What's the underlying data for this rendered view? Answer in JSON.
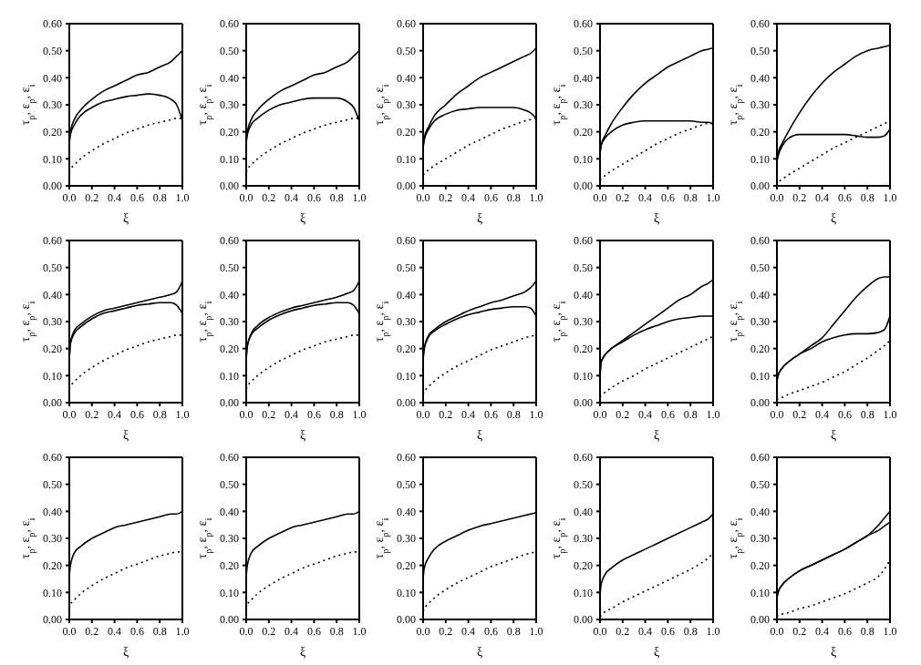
{
  "chart_data": [
    {
      "type": "line",
      "xlabel": "ξ",
      "ylabel": "τ$_{p}$, ε$_{p}$, ε$_{i}$",
      "x": [
        0,
        0.01,
        0.05,
        0.1,
        0.2,
        0.3,
        0.4,
        0.5,
        0.6,
        0.7,
        0.8,
        0.9,
        0.95,
        1.0
      ],
      "xlim": [
        0,
        1
      ],
      "xticks": [
        {
          "value": 0,
          "label": "0.0"
        },
        {
          "value": 0.2,
          "label": "0.2"
        },
        {
          "value": 0.4,
          "label": "0.4"
        },
        {
          "value": 0.6,
          "label": "0.6"
        },
        {
          "value": 0.8,
          "label": "0.8"
        },
        {
          "value": 1,
          "label": "1.0"
        }
      ],
      "ylim": [
        0,
        0.6
      ],
      "yticks": [
        {
          "value": 0,
          "label": "0.00"
        },
        {
          "value": 0.1,
          "label": "0.10"
        },
        {
          "value": 0.2,
          "label": "0.20"
        },
        {
          "value": 0.3,
          "label": "0.30"
        },
        {
          "value": 0.4,
          "label": "0.40"
        },
        {
          "value": 0.5,
          "label": "0.50"
        },
        {
          "value": 0.6,
          "label": "0.60"
        }
      ],
      "series": [
        {
          "color": "#000000",
          "line_style": "solid",
          "values": [
            0.16,
            0.2,
            0.25,
            0.28,
            0.32,
            0.35,
            0.37,
            0.39,
            0.41,
            0.42,
            0.44,
            0.46,
            0.48,
            0.5
          ]
        },
        {
          "color": "#000000",
          "line_style": "solid",
          "values": [
            0.16,
            0.19,
            0.23,
            0.26,
            0.29,
            0.31,
            0.32,
            0.33,
            0.335,
            0.34,
            0.335,
            0.32,
            0.3,
            0.24
          ]
        },
        {
          "color": "#000000",
          "line_style": "dotted",
          "values": [
            0.05,
            0.06,
            0.08,
            0.1,
            0.13,
            0.155,
            0.175,
            0.195,
            0.21,
            0.225,
            0.235,
            0.245,
            0.25,
            0.25
          ]
        }
      ]
    },
    {
      "type": "line",
      "xlabel": "ξ",
      "ylabel": "τ$_{p}$, ε$_{p}$, ε$_{i}$",
      "x": [
        0,
        0.01,
        0.05,
        0.1,
        0.2,
        0.3,
        0.4,
        0.5,
        0.6,
        0.7,
        0.8,
        0.9,
        0.95,
        1.0
      ],
      "xlim": [
        0,
        1
      ],
      "xticks": [
        {
          "value": 0,
          "label": "0.0"
        },
        {
          "value": 0.2,
          "label": "0.2"
        },
        {
          "value": 0.4,
          "label": "0.4"
        },
        {
          "value": 0.6,
          "label": "0.6"
        },
        {
          "value": 0.8,
          "label": "0.8"
        },
        {
          "value": 1,
          "label": "1.0"
        }
      ],
      "ylim": [
        0,
        0.6
      ],
      "yticks": [
        {
          "value": 0,
          "label": "0.00"
        },
        {
          "value": 0.1,
          "label": "0.10"
        },
        {
          "value": 0.2,
          "label": "0.20"
        },
        {
          "value": 0.3,
          "label": "0.30"
        },
        {
          "value": 0.4,
          "label": "0.40"
        },
        {
          "value": 0.5,
          "label": "0.50"
        },
        {
          "value": 0.6,
          "label": "0.60"
        }
      ],
      "series": [
        {
          "color": "#000000",
          "line_style": "solid",
          "values": [
            0.16,
            0.2,
            0.25,
            0.28,
            0.32,
            0.35,
            0.37,
            0.39,
            0.41,
            0.42,
            0.44,
            0.46,
            0.48,
            0.5
          ]
        },
        {
          "color": "#000000",
          "line_style": "solid",
          "values": [
            0.16,
            0.19,
            0.23,
            0.25,
            0.28,
            0.3,
            0.31,
            0.32,
            0.325,
            0.325,
            0.325,
            0.31,
            0.29,
            0.24
          ]
        },
        {
          "color": "#000000",
          "line_style": "dotted",
          "values": [
            0.05,
            0.06,
            0.08,
            0.1,
            0.13,
            0.155,
            0.175,
            0.195,
            0.21,
            0.225,
            0.235,
            0.245,
            0.25,
            0.25
          ]
        }
      ]
    },
    {
      "type": "line",
      "xlabel": "ξ",
      "ylabel": "τ$_{p}$, ε$_{p}$, ε$_{i}$",
      "x": [
        0,
        0.01,
        0.05,
        0.1,
        0.2,
        0.3,
        0.4,
        0.5,
        0.6,
        0.7,
        0.8,
        0.9,
        0.95,
        1.0
      ],
      "xlim": [
        0,
        1
      ],
      "xticks": [
        {
          "value": 0,
          "label": "0.0"
        },
        {
          "value": 0.2,
          "label": "0.2"
        },
        {
          "value": 0.4,
          "label": "0.4"
        },
        {
          "value": 0.6,
          "label": "0.6"
        },
        {
          "value": 0.8,
          "label": "0.8"
        },
        {
          "value": 1,
          "label": "1.0"
        }
      ],
      "ylim": [
        0,
        0.6
      ],
      "yticks": [
        {
          "value": 0,
          "label": "0.00"
        },
        {
          "value": 0.1,
          "label": "0.10"
        },
        {
          "value": 0.2,
          "label": "0.20"
        },
        {
          "value": 0.3,
          "label": "0.30"
        },
        {
          "value": 0.4,
          "label": "0.40"
        },
        {
          "value": 0.5,
          "label": "0.50"
        },
        {
          "value": 0.6,
          "label": "0.60"
        }
      ],
      "series": [
        {
          "color": "#000000",
          "line_style": "solid",
          "values": [
            0.14,
            0.18,
            0.22,
            0.26,
            0.3,
            0.34,
            0.37,
            0.4,
            0.42,
            0.44,
            0.46,
            0.48,
            0.49,
            0.51
          ]
        },
        {
          "color": "#000000",
          "line_style": "solid",
          "values": [
            0.14,
            0.17,
            0.21,
            0.24,
            0.265,
            0.28,
            0.285,
            0.29,
            0.29,
            0.29,
            0.29,
            0.28,
            0.27,
            0.25
          ]
        },
        {
          "color": "#000000",
          "line_style": "dotted",
          "values": [
            0.04,
            0.045,
            0.06,
            0.075,
            0.1,
            0.125,
            0.15,
            0.17,
            0.19,
            0.21,
            0.225,
            0.24,
            0.245,
            0.25
          ]
        }
      ]
    },
    {
      "type": "line",
      "xlabel": "ξ",
      "ylabel": "τ$_{p}$, ε$_{p}$, ε$_{i}$",
      "x": [
        0,
        0.01,
        0.05,
        0.1,
        0.2,
        0.3,
        0.4,
        0.5,
        0.6,
        0.7,
        0.8,
        0.9,
        0.95,
        1.0
      ],
      "xlim": [
        0,
        1
      ],
      "xticks": [
        {
          "value": 0,
          "label": "0.0"
        },
        {
          "value": 0.2,
          "label": "0.2"
        },
        {
          "value": 0.4,
          "label": "0.4"
        },
        {
          "value": 0.6,
          "label": "0.6"
        },
        {
          "value": 0.8,
          "label": "0.8"
        },
        {
          "value": 1,
          "label": "1.0"
        }
      ],
      "ylim": [
        0,
        0.6
      ],
      "yticks": [
        {
          "value": 0,
          "label": "0.00"
        },
        {
          "value": 0.1,
          "label": "0.10"
        },
        {
          "value": 0.2,
          "label": "0.20"
        },
        {
          "value": 0.3,
          "label": "0.30"
        },
        {
          "value": 0.4,
          "label": "0.40"
        },
        {
          "value": 0.5,
          "label": "0.50"
        },
        {
          "value": 0.6,
          "label": "0.60"
        }
      ],
      "series": [
        {
          "color": "#000000",
          "line_style": "solid",
          "values": [
            0.12,
            0.15,
            0.19,
            0.23,
            0.29,
            0.34,
            0.38,
            0.41,
            0.44,
            0.46,
            0.48,
            0.5,
            0.505,
            0.51
          ]
        },
        {
          "color": "#000000",
          "line_style": "solid",
          "values": [
            0.12,
            0.15,
            0.18,
            0.2,
            0.225,
            0.235,
            0.24,
            0.24,
            0.24,
            0.24,
            0.24,
            0.235,
            0.235,
            0.23
          ]
        },
        {
          "color": "#000000",
          "line_style": "dotted",
          "values": [
            0.02,
            0.025,
            0.04,
            0.055,
            0.08,
            0.105,
            0.13,
            0.155,
            0.175,
            0.195,
            0.21,
            0.225,
            0.23,
            0.23
          ]
        }
      ]
    },
    {
      "type": "line",
      "xlabel": "ξ",
      "ylabel": "τ$_{p}$, ε$_{p}$, ε$_{i}$",
      "x": [
        0,
        0.01,
        0.05,
        0.1,
        0.2,
        0.3,
        0.4,
        0.5,
        0.6,
        0.7,
        0.8,
        0.9,
        0.95,
        1.0
      ],
      "xlim": [
        0,
        1
      ],
      "xticks": [
        {
          "value": 0,
          "label": "0.0"
        },
        {
          "value": 0.2,
          "label": "0.2"
        },
        {
          "value": 0.4,
          "label": "0.4"
        },
        {
          "value": 0.6,
          "label": "0.6"
        },
        {
          "value": 0.8,
          "label": "0.8"
        },
        {
          "value": 1,
          "label": "1.0"
        }
      ],
      "ylim": [
        0,
        0.6
      ],
      "yticks": [
        {
          "value": 0,
          "label": "0.00"
        },
        {
          "value": 0.1,
          "label": "0.10"
        },
        {
          "value": 0.2,
          "label": "0.20"
        },
        {
          "value": 0.3,
          "label": "0.30"
        },
        {
          "value": 0.4,
          "label": "0.40"
        },
        {
          "value": 0.5,
          "label": "0.50"
        },
        {
          "value": 0.6,
          "label": "0.60"
        }
      ],
      "series": [
        {
          "color": "#000000",
          "line_style": "solid",
          "values": [
            0.09,
            0.12,
            0.16,
            0.2,
            0.27,
            0.33,
            0.38,
            0.42,
            0.45,
            0.48,
            0.5,
            0.51,
            0.515,
            0.52
          ]
        },
        {
          "color": "#000000",
          "line_style": "solid",
          "values": [
            0.09,
            0.11,
            0.15,
            0.175,
            0.19,
            0.19,
            0.19,
            0.19,
            0.19,
            0.185,
            0.18,
            0.18,
            0.185,
            0.21
          ]
        },
        {
          "color": "#000000",
          "line_style": "dotted",
          "values": [
            0.0,
            0.01,
            0.025,
            0.04,
            0.065,
            0.09,
            0.115,
            0.14,
            0.16,
            0.18,
            0.2,
            0.22,
            0.23,
            0.24
          ]
        }
      ]
    },
    {
      "type": "line",
      "xlabel": "ξ",
      "ylabel": "τ$_{p}$, ε$_{p}$, ε$_{i}$",
      "x": [
        0,
        0.01,
        0.05,
        0.1,
        0.2,
        0.3,
        0.4,
        0.5,
        0.6,
        0.7,
        0.8,
        0.9,
        0.95,
        1.0
      ],
      "xlim": [
        0,
        1
      ],
      "xticks": [
        {
          "value": 0,
          "label": "0.0"
        },
        {
          "value": 0.2,
          "label": "0.2"
        },
        {
          "value": 0.4,
          "label": "0.4"
        },
        {
          "value": 0.6,
          "label": "0.6"
        },
        {
          "value": 0.8,
          "label": "0.8"
        },
        {
          "value": 1,
          "label": "1.0"
        }
      ],
      "ylim": [
        0,
        0.6
      ],
      "yticks": [
        {
          "value": 0,
          "label": "0.00"
        },
        {
          "value": 0.1,
          "label": "0.10"
        },
        {
          "value": 0.2,
          "label": "0.20"
        },
        {
          "value": 0.3,
          "label": "0.30"
        },
        {
          "value": 0.4,
          "label": "0.40"
        },
        {
          "value": 0.5,
          "label": "0.50"
        },
        {
          "value": 0.6,
          "label": "0.60"
        }
      ],
      "series": [
        {
          "color": "#000000",
          "line_style": "solid",
          "values": [
            0.16,
            0.22,
            0.27,
            0.29,
            0.32,
            0.34,
            0.35,
            0.36,
            0.37,
            0.38,
            0.39,
            0.4,
            0.41,
            0.45
          ]
        },
        {
          "color": "#000000",
          "line_style": "solid",
          "values": [
            0.16,
            0.22,
            0.26,
            0.28,
            0.31,
            0.33,
            0.34,
            0.35,
            0.36,
            0.365,
            0.37,
            0.37,
            0.36,
            0.33
          ]
        },
        {
          "color": "#000000",
          "line_style": "dotted",
          "values": [
            0.05,
            0.06,
            0.08,
            0.1,
            0.13,
            0.155,
            0.175,
            0.195,
            0.21,
            0.225,
            0.235,
            0.245,
            0.25,
            0.25
          ]
        }
      ]
    },
    {
      "type": "line",
      "xlabel": "ξ",
      "ylabel": "τ$_{p}$, ε$_{p}$, ε$_{i}$",
      "x": [
        0,
        0.01,
        0.05,
        0.1,
        0.2,
        0.3,
        0.4,
        0.5,
        0.6,
        0.7,
        0.8,
        0.9,
        0.95,
        1.0
      ],
      "xlim": [
        0,
        1
      ],
      "xticks": [
        {
          "value": 0,
          "label": "0.0"
        },
        {
          "value": 0.2,
          "label": "0.2"
        },
        {
          "value": 0.4,
          "label": "0.4"
        },
        {
          "value": 0.6,
          "label": "0.6"
        },
        {
          "value": 0.8,
          "label": "0.8"
        },
        {
          "value": 1,
          "label": "1.0"
        }
      ],
      "ylim": [
        0,
        0.6
      ],
      "yticks": [
        {
          "value": 0,
          "label": "0.00"
        },
        {
          "value": 0.1,
          "label": "0.10"
        },
        {
          "value": 0.2,
          "label": "0.20"
        },
        {
          "value": 0.3,
          "label": "0.30"
        },
        {
          "value": 0.4,
          "label": "0.40"
        },
        {
          "value": 0.5,
          "label": "0.50"
        },
        {
          "value": 0.6,
          "label": "0.60"
        }
      ],
      "series": [
        {
          "color": "#000000",
          "line_style": "solid",
          "values": [
            0.16,
            0.21,
            0.26,
            0.285,
            0.315,
            0.335,
            0.35,
            0.36,
            0.37,
            0.38,
            0.39,
            0.405,
            0.415,
            0.45
          ]
        },
        {
          "color": "#000000",
          "line_style": "solid",
          "values": [
            0.16,
            0.21,
            0.255,
            0.275,
            0.305,
            0.325,
            0.34,
            0.35,
            0.36,
            0.365,
            0.37,
            0.37,
            0.36,
            0.33
          ]
        },
        {
          "color": "#000000",
          "line_style": "dotted",
          "values": [
            0.05,
            0.06,
            0.08,
            0.1,
            0.13,
            0.155,
            0.175,
            0.195,
            0.21,
            0.225,
            0.235,
            0.245,
            0.25,
            0.25
          ]
        }
      ]
    },
    {
      "type": "line",
      "xlabel": "ξ",
      "ylabel": "τ$_{p}$, ε$_{p}$, ε$_{i}$",
      "x": [
        0,
        0.01,
        0.05,
        0.1,
        0.2,
        0.3,
        0.4,
        0.5,
        0.6,
        0.7,
        0.8,
        0.9,
        0.95,
        1.0
      ],
      "xlim": [
        0,
        1
      ],
      "xticks": [
        {
          "value": 0,
          "label": "0.0"
        },
        {
          "value": 0.2,
          "label": "0.2"
        },
        {
          "value": 0.4,
          "label": "0.4"
        },
        {
          "value": 0.6,
          "label": "0.6"
        },
        {
          "value": 0.8,
          "label": "0.8"
        },
        {
          "value": 1,
          "label": "1.0"
        }
      ],
      "ylim": [
        0,
        0.6
      ],
      "yticks": [
        {
          "value": 0,
          "label": "0.00"
        },
        {
          "value": 0.1,
          "label": "0.10"
        },
        {
          "value": 0.2,
          "label": "0.20"
        },
        {
          "value": 0.3,
          "label": "0.30"
        },
        {
          "value": 0.4,
          "label": "0.40"
        },
        {
          "value": 0.5,
          "label": "0.50"
        },
        {
          "value": 0.6,
          "label": "0.60"
        }
      ],
      "series": [
        {
          "color": "#000000",
          "line_style": "solid",
          "values": [
            0.16,
            0.2,
            0.25,
            0.27,
            0.3,
            0.32,
            0.34,
            0.355,
            0.37,
            0.38,
            0.395,
            0.41,
            0.425,
            0.45
          ]
        },
        {
          "color": "#000000",
          "line_style": "solid",
          "values": [
            0.16,
            0.2,
            0.245,
            0.265,
            0.29,
            0.31,
            0.325,
            0.335,
            0.345,
            0.35,
            0.355,
            0.355,
            0.35,
            0.32
          ]
        },
        {
          "color": "#000000",
          "line_style": "dotted",
          "values": [
            0.03,
            0.04,
            0.06,
            0.08,
            0.11,
            0.135,
            0.155,
            0.175,
            0.195,
            0.21,
            0.225,
            0.24,
            0.245,
            0.25
          ]
        }
      ]
    },
    {
      "type": "line",
      "xlabel": "ξ",
      "ylabel": "τ$_{p}$, ε$_{p}$, ε$_{i}$",
      "x": [
        0,
        0.01,
        0.05,
        0.1,
        0.2,
        0.3,
        0.4,
        0.5,
        0.6,
        0.7,
        0.8,
        0.9,
        0.95,
        1.0
      ],
      "xlim": [
        0,
        1
      ],
      "xticks": [
        {
          "value": 0,
          "label": "0.0"
        },
        {
          "value": 0.2,
          "label": "0.2"
        },
        {
          "value": 0.4,
          "label": "0.4"
        },
        {
          "value": 0.6,
          "label": "0.6"
        },
        {
          "value": 0.8,
          "label": "0.8"
        },
        {
          "value": 1,
          "label": "1.0"
        }
      ],
      "ylim": [
        0,
        0.6
      ],
      "yticks": [
        {
          "value": 0,
          "label": "0.00"
        },
        {
          "value": 0.1,
          "label": "0.10"
        },
        {
          "value": 0.2,
          "label": "0.20"
        },
        {
          "value": 0.3,
          "label": "0.30"
        },
        {
          "value": 0.4,
          "label": "0.40"
        },
        {
          "value": 0.5,
          "label": "0.50"
        },
        {
          "value": 0.6,
          "label": "0.60"
        }
      ],
      "series": [
        {
          "color": "#000000",
          "line_style": "solid",
          "values": [
            0.1,
            0.15,
            0.18,
            0.2,
            0.23,
            0.26,
            0.29,
            0.32,
            0.35,
            0.38,
            0.4,
            0.43,
            0.44,
            0.455
          ]
        },
        {
          "color": "#000000",
          "line_style": "solid",
          "values": [
            0.1,
            0.15,
            0.18,
            0.2,
            0.225,
            0.25,
            0.27,
            0.285,
            0.3,
            0.31,
            0.315,
            0.32,
            0.32,
            0.32
          ]
        },
        {
          "color": "#000000",
          "line_style": "dotted",
          "values": [
            0.02,
            0.025,
            0.04,
            0.055,
            0.08,
            0.1,
            0.125,
            0.145,
            0.165,
            0.185,
            0.205,
            0.225,
            0.235,
            0.245
          ]
        }
      ]
    },
    {
      "type": "line",
      "xlabel": "ξ",
      "ylabel": "τ$_{p}$, ε$_{p}$, ε$_{i}$",
      "x": [
        0,
        0.01,
        0.05,
        0.1,
        0.2,
        0.3,
        0.4,
        0.5,
        0.6,
        0.7,
        0.8,
        0.9,
        0.95,
        1.0
      ],
      "xlim": [
        0,
        1
      ],
      "xticks": [
        {
          "value": 0,
          "label": "0.0"
        },
        {
          "value": 0.2,
          "label": "0.2"
        },
        {
          "value": 0.4,
          "label": "0.4"
        },
        {
          "value": 0.6,
          "label": "0.6"
        },
        {
          "value": 0.8,
          "label": "0.8"
        },
        {
          "value": 1,
          "label": "1.0"
        }
      ],
      "ylim": [
        0,
        0.6
      ],
      "yticks": [
        {
          "value": 0,
          "label": "0.00"
        },
        {
          "value": 0.1,
          "label": "0.10"
        },
        {
          "value": 0.2,
          "label": "0.20"
        },
        {
          "value": 0.3,
          "label": "0.30"
        },
        {
          "value": 0.4,
          "label": "0.40"
        },
        {
          "value": 0.5,
          "label": "0.50"
        },
        {
          "value": 0.6,
          "label": "0.60"
        }
      ],
      "series": [
        {
          "color": "#000000",
          "line_style": "solid",
          "values": [
            0.08,
            0.1,
            0.13,
            0.15,
            0.18,
            0.21,
            0.24,
            0.29,
            0.34,
            0.39,
            0.43,
            0.46,
            0.465,
            0.465
          ]
        },
        {
          "color": "#000000",
          "line_style": "solid",
          "values": [
            0.08,
            0.1,
            0.13,
            0.15,
            0.18,
            0.2,
            0.225,
            0.24,
            0.25,
            0.255,
            0.255,
            0.26,
            0.27,
            0.32
          ]
        },
        {
          "color": "#000000",
          "line_style": "dotted",
          "values": [
            0.01,
            0.015,
            0.02,
            0.03,
            0.045,
            0.06,
            0.075,
            0.095,
            0.115,
            0.14,
            0.165,
            0.195,
            0.21,
            0.23
          ]
        }
      ]
    },
    {
      "type": "line",
      "xlabel": "ξ",
      "ylabel": "τ$_{p}$, ε$_{p}$, ε$_{i}$",
      "x": [
        0,
        0.01,
        0.05,
        0.1,
        0.2,
        0.3,
        0.4,
        0.5,
        0.6,
        0.7,
        0.8,
        0.9,
        0.95,
        1.0
      ],
      "xlim": [
        0,
        1
      ],
      "xticks": [
        {
          "value": 0,
          "label": "0.0"
        },
        {
          "value": 0.2,
          "label": "0.2"
        },
        {
          "value": 0.4,
          "label": "0.4"
        },
        {
          "value": 0.6,
          "label": "0.6"
        },
        {
          "value": 0.8,
          "label": "0.8"
        },
        {
          "value": 1,
          "label": "1.0"
        }
      ],
      "ylim": [
        0,
        0.6
      ],
      "yticks": [
        {
          "value": 0,
          "label": "0.00"
        },
        {
          "value": 0.1,
          "label": "0.10"
        },
        {
          "value": 0.2,
          "label": "0.20"
        },
        {
          "value": 0.3,
          "label": "0.30"
        },
        {
          "value": 0.4,
          "label": "0.40"
        },
        {
          "value": 0.5,
          "label": "0.50"
        },
        {
          "value": 0.6,
          "label": "0.60"
        }
      ],
      "series": [
        {
          "color": "#000000",
          "line_style": "solid",
          "values": [
            0.16,
            0.2,
            0.25,
            0.27,
            0.3,
            0.32,
            0.34,
            0.35,
            0.36,
            0.37,
            0.38,
            0.39,
            0.39,
            0.4
          ]
        },
        {
          "color": "#000000",
          "line_style": "dotted",
          "values": [
            0.04,
            0.055,
            0.075,
            0.095,
            0.125,
            0.15,
            0.17,
            0.19,
            0.205,
            0.22,
            0.235,
            0.245,
            0.25,
            0.25
          ]
        }
      ]
    },
    {
      "type": "line",
      "xlabel": "ξ",
      "ylabel": "τ$_{p}$, ε$_{p}$, ε$_{i}$",
      "x": [
        0,
        0.01,
        0.05,
        0.1,
        0.2,
        0.3,
        0.4,
        0.5,
        0.6,
        0.7,
        0.8,
        0.9,
        0.95,
        1.0
      ],
      "xlim": [
        0,
        1
      ],
      "xticks": [
        {
          "value": 0,
          "label": "0.0"
        },
        {
          "value": 0.2,
          "label": "0.2"
        },
        {
          "value": 0.4,
          "label": "0.4"
        },
        {
          "value": 0.6,
          "label": "0.6"
        },
        {
          "value": 0.8,
          "label": "0.8"
        },
        {
          "value": 1,
          "label": "1.0"
        }
      ],
      "ylim": [
        0,
        0.6
      ],
      "yticks": [
        {
          "value": 0,
          "label": "0.00"
        },
        {
          "value": 0.1,
          "label": "0.10"
        },
        {
          "value": 0.2,
          "label": "0.20"
        },
        {
          "value": 0.3,
          "label": "0.30"
        },
        {
          "value": 0.4,
          "label": "0.40"
        },
        {
          "value": 0.5,
          "label": "0.50"
        },
        {
          "value": 0.6,
          "label": "0.60"
        }
      ],
      "series": [
        {
          "color": "#000000",
          "line_style": "solid",
          "values": [
            0.16,
            0.2,
            0.25,
            0.27,
            0.3,
            0.32,
            0.34,
            0.35,
            0.36,
            0.37,
            0.38,
            0.39,
            0.39,
            0.4
          ]
        },
        {
          "color": "#000000",
          "line_style": "dotted",
          "values": [
            0.04,
            0.055,
            0.075,
            0.095,
            0.125,
            0.15,
            0.17,
            0.19,
            0.205,
            0.22,
            0.235,
            0.245,
            0.25,
            0.25
          ]
        }
      ]
    },
    {
      "type": "line",
      "xlabel": "ξ",
      "ylabel": "τ$_{p}$, ε$_{p}$, ε$_{i}$",
      "x": [
        0,
        0.01,
        0.05,
        0.1,
        0.2,
        0.3,
        0.4,
        0.5,
        0.6,
        0.7,
        0.8,
        0.9,
        0.95,
        1.0
      ],
      "xlim": [
        0,
        1
      ],
      "xticks": [
        {
          "value": 0,
          "label": "0.0"
        },
        {
          "value": 0.2,
          "label": "0.2"
        },
        {
          "value": 0.4,
          "label": "0.4"
        },
        {
          "value": 0.6,
          "label": "0.6"
        },
        {
          "value": 0.8,
          "label": "0.8"
        },
        {
          "value": 1,
          "label": "1.0"
        }
      ],
      "ylim": [
        0,
        0.6
      ],
      "yticks": [
        {
          "value": 0,
          "label": "0.00"
        },
        {
          "value": 0.1,
          "label": "0.10"
        },
        {
          "value": 0.2,
          "label": "0.20"
        },
        {
          "value": 0.3,
          "label": "0.30"
        },
        {
          "value": 0.4,
          "label": "0.40"
        },
        {
          "value": 0.5,
          "label": "0.50"
        },
        {
          "value": 0.6,
          "label": "0.60"
        }
      ],
      "series": [
        {
          "color": "#000000",
          "line_style": "solid",
          "values": [
            0.15,
            0.19,
            0.23,
            0.26,
            0.29,
            0.31,
            0.33,
            0.345,
            0.355,
            0.365,
            0.375,
            0.385,
            0.39,
            0.395
          ]
        },
        {
          "color": "#000000",
          "line_style": "dotted",
          "values": [
            0.03,
            0.04,
            0.06,
            0.08,
            0.11,
            0.135,
            0.155,
            0.175,
            0.195,
            0.21,
            0.225,
            0.24,
            0.245,
            0.25
          ]
        }
      ]
    },
    {
      "type": "line",
      "xlabel": "ξ",
      "ylabel": "τ$_{p}$, ε$_{p}$, ε$_{i}$",
      "x": [
        0,
        0.01,
        0.05,
        0.1,
        0.2,
        0.3,
        0.4,
        0.5,
        0.6,
        0.7,
        0.8,
        0.9,
        0.95,
        1.0
      ],
      "xlim": [
        0,
        1
      ],
      "xticks": [
        {
          "value": 0,
          "label": "0.0"
        },
        {
          "value": 0.2,
          "label": "0.2"
        },
        {
          "value": 0.4,
          "label": "0.4"
        },
        {
          "value": 0.6,
          "label": "0.6"
        },
        {
          "value": 0.8,
          "label": "0.8"
        },
        {
          "value": 1,
          "label": "1.0"
        }
      ],
      "ylim": [
        0,
        0.6
      ],
      "yticks": [
        {
          "value": 0,
          "label": "0.00"
        },
        {
          "value": 0.1,
          "label": "0.10"
        },
        {
          "value": 0.2,
          "label": "0.20"
        },
        {
          "value": 0.3,
          "label": "0.30"
        },
        {
          "value": 0.4,
          "label": "0.40"
        },
        {
          "value": 0.5,
          "label": "0.50"
        },
        {
          "value": 0.6,
          "label": "0.60"
        }
      ],
      "series": [
        {
          "color": "#000000",
          "line_style": "solid",
          "values": [
            0.09,
            0.13,
            0.17,
            0.19,
            0.22,
            0.24,
            0.26,
            0.28,
            0.3,
            0.32,
            0.34,
            0.36,
            0.37,
            0.39
          ]
        },
        {
          "color": "#000000",
          "line_style": "dotted",
          "values": [
            0.01,
            0.015,
            0.03,
            0.04,
            0.065,
            0.085,
            0.105,
            0.125,
            0.145,
            0.165,
            0.185,
            0.21,
            0.225,
            0.245
          ]
        }
      ]
    },
    {
      "type": "line",
      "xlabel": "ξ",
      "ylabel": "τ$_{p}$, ε$_{p}$, ε$_{i}$",
      "x": [
        0,
        0.01,
        0.05,
        0.1,
        0.2,
        0.3,
        0.4,
        0.5,
        0.6,
        0.7,
        0.8,
        0.9,
        0.95,
        1.0
      ],
      "xlim": [
        0,
        1
      ],
      "xticks": [
        {
          "value": 0,
          "label": "0.0"
        },
        {
          "value": 0.2,
          "label": "0.2"
        },
        {
          "value": 0.4,
          "label": "0.4"
        },
        {
          "value": 0.6,
          "label": "0.6"
        },
        {
          "value": 0.8,
          "label": "0.8"
        },
        {
          "value": 1,
          "label": "1.0"
        }
      ],
      "ylim": [
        0,
        0.6
      ],
      "yticks": [
        {
          "value": 0,
          "label": "0.00"
        },
        {
          "value": 0.1,
          "label": "0.10"
        },
        {
          "value": 0.2,
          "label": "0.20"
        },
        {
          "value": 0.3,
          "label": "0.30"
        },
        {
          "value": 0.4,
          "label": "0.40"
        },
        {
          "value": 0.5,
          "label": "0.50"
        },
        {
          "value": 0.6,
          "label": "0.60"
        }
      ],
      "series": [
        {
          "color": "#000000",
          "line_style": "solid",
          "values": [
            0.08,
            0.1,
            0.13,
            0.15,
            0.18,
            0.2,
            0.22,
            0.24,
            0.26,
            0.285,
            0.31,
            0.35,
            0.375,
            0.4
          ]
        },
        {
          "color": "#000000",
          "line_style": "solid",
          "values": [
            0.08,
            0.1,
            0.13,
            0.15,
            0.18,
            0.2,
            0.22,
            0.24,
            0.26,
            0.285,
            0.31,
            0.33,
            0.345,
            0.36
          ]
        },
        {
          "color": "#000000",
          "line_style": "dotted",
          "values": [
            0.01,
            0.015,
            0.02,
            0.025,
            0.04,
            0.05,
            0.065,
            0.08,
            0.095,
            0.115,
            0.135,
            0.16,
            0.185,
            0.22
          ]
        }
      ]
    }
  ]
}
